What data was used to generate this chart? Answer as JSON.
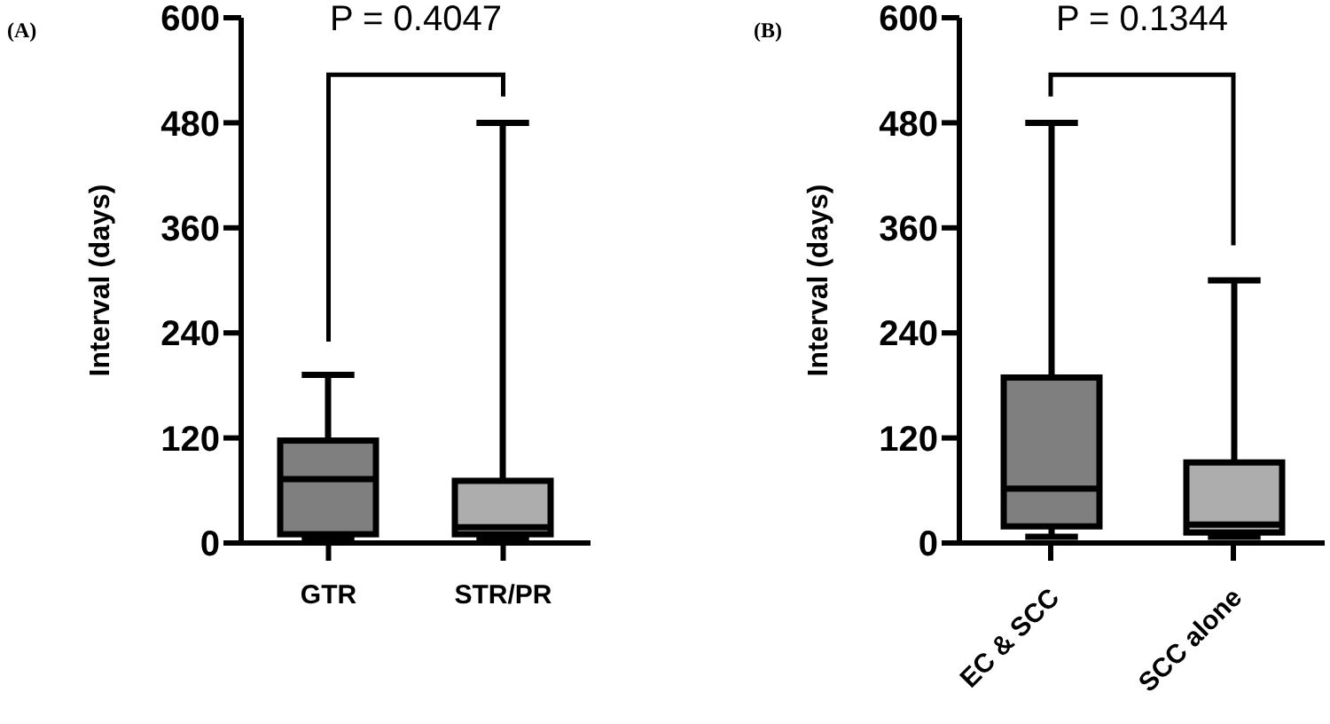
{
  "chart_data": [
    {
      "type": "box",
      "title": "(A)",
      "ylabel": "Interval (days)",
      "categories": [
        "GTR",
        "STR/PR"
      ],
      "colors": [
        "#7f7f7f",
        "#adadad"
      ],
      "ylim": [
        0,
        600
      ],
      "yticks": [
        0,
        120,
        240,
        360,
        480,
        600
      ],
      "grid": false,
      "annotations": [
        "P = 0.4047"
      ],
      "boxes": [
        {
          "low": 5,
          "q1": 10,
          "median": 73,
          "q3": 117,
          "high": 192
        },
        {
          "low": 5,
          "q1": 10,
          "median": 18,
          "q3": 71,
          "high": 480
        }
      ]
    },
    {
      "type": "box",
      "title": "(B)",
      "ylabel": "Interval (days)",
      "categories": [
        "EC & SCC",
        "SCC alone"
      ],
      "colors": [
        "#7f7f7f",
        "#adadad"
      ],
      "ylim": [
        0,
        600
      ],
      "yticks": [
        0,
        120,
        240,
        360,
        480,
        600
      ],
      "grid": false,
      "annotations": [
        "P = 0.1344"
      ],
      "boxes": [
        {
          "low": 7,
          "q1": 19,
          "median": 62,
          "q3": 189,
          "high": 480
        },
        {
          "low": 7,
          "q1": 12,
          "median": 21,
          "q3": 92,
          "high": 300
        }
      ]
    }
  ]
}
